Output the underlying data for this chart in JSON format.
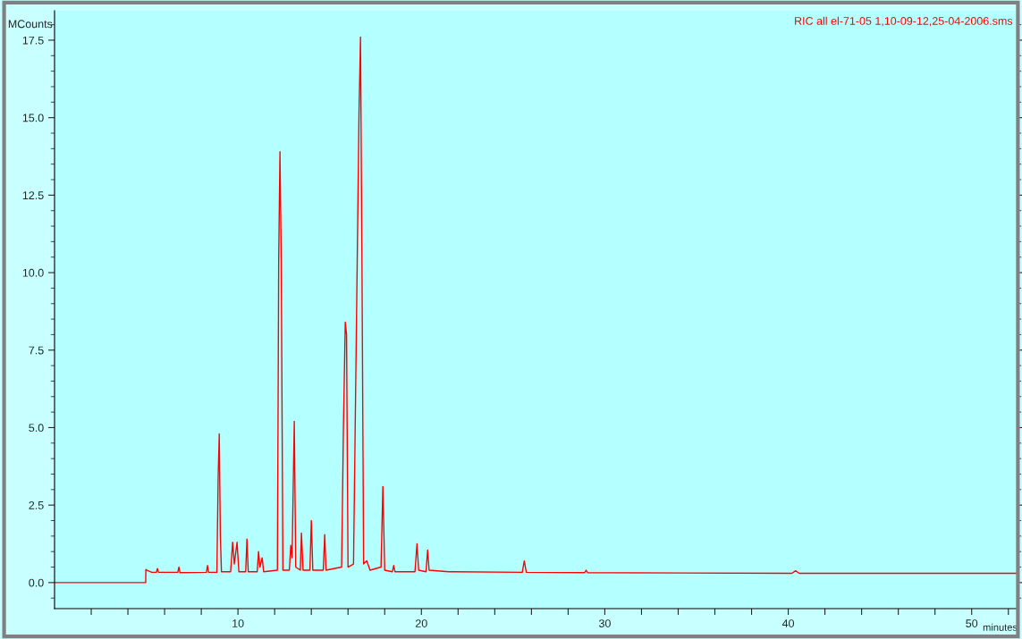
{
  "chart_data": {
    "type": "line",
    "title": "RIC all el-71-05 1,10-09-12,25-04-2006.sms",
    "xlabel": "minutes",
    "ylabel": "MCounts",
    "series": [
      {
        "color": "#ff0000",
        "x": [
          0,
          4.97,
          4.98,
          5.1,
          5.3,
          5.55,
          5.61,
          5.67,
          6.72,
          6.78,
          6.84,
          8.28,
          8.34,
          8.4,
          8.85,
          8.92,
          8.98,
          9.04,
          9.1,
          9.6,
          9.71,
          9.8,
          9.95,
          10.05,
          10.42,
          10.49,
          10.56,
          11.05,
          11.12,
          11.2,
          11.32,
          11.4,
          12.15,
          12.22,
          12.29,
          12.36,
          12.45,
          12.8,
          12.88,
          12.95,
          13.07,
          13.15,
          13.4,
          13.46,
          13.55,
          13.92,
          14.0,
          14.08,
          14.65,
          14.73,
          14.8,
          15.65,
          15.75,
          15.85,
          15.92,
          16.0,
          16.3,
          16.5,
          16.6,
          16.68,
          16.76,
          16.85,
          17.02,
          17.2,
          17.8,
          17.9,
          18.0,
          18.42,
          18.49,
          18.56,
          19.65,
          19.76,
          19.85,
          20.25,
          20.34,
          20.42,
          21.5,
          25.5,
          25.61,
          25.72,
          28.9,
          28.98,
          29.06,
          40.2,
          40.4,
          40.6,
          52.5
        ],
        "values": [
          0,
          0,
          0.42,
          0.38,
          0.33,
          0.33,
          0.45,
          0.33,
          0.33,
          0.5,
          0.32,
          0.33,
          0.55,
          0.33,
          0.33,
          3.4,
          4.8,
          1.5,
          0.35,
          0.35,
          1.3,
          0.6,
          1.3,
          0.35,
          0.35,
          1.4,
          0.35,
          0.35,
          1.0,
          0.5,
          0.8,
          0.35,
          0.4,
          10.4,
          13.9,
          10.3,
          0.4,
          0.4,
          1.2,
          0.8,
          5.2,
          0.5,
          0.4,
          1.6,
          0.4,
          0.4,
          2.0,
          0.4,
          0.4,
          1.55,
          0.4,
          0.5,
          5.0,
          8.4,
          8.0,
          0.5,
          0.6,
          10.3,
          15.2,
          17.6,
          10.3,
          0.6,
          0.7,
          0.4,
          0.5,
          3.1,
          0.4,
          0.35,
          0.55,
          0.35,
          0.35,
          1.25,
          0.4,
          0.35,
          1.05,
          0.4,
          0.35,
          0.33,
          0.7,
          0.33,
          0.32,
          0.4,
          0.32,
          0.3,
          0.38,
          0.3,
          0.3
        ]
      }
    ],
    "xlim": [
      0,
      52.5
    ],
    "ylim": [
      -0.84,
      18.45
    ],
    "xticks": [
      {
        "value": 2,
        "label": null
      },
      {
        "value": 4,
        "label": null
      },
      {
        "value": 6,
        "label": null
      },
      {
        "value": 8,
        "label": null
      },
      10,
      {
        "value": 12,
        "label": null
      },
      {
        "value": 14,
        "label": null
      },
      {
        "value": 16,
        "label": null
      },
      {
        "value": 18,
        "label": null
      },
      20,
      {
        "value": 22,
        "label": null
      },
      {
        "value": 24,
        "label": null
      },
      {
        "value": 26,
        "label": null
      },
      {
        "value": 28,
        "label": null
      },
      30,
      {
        "value": 32,
        "label": null
      },
      {
        "value": 34,
        "label": null
      },
      {
        "value": 36,
        "label": null
      },
      {
        "value": 38,
        "label": null
      },
      40,
      {
        "value": 42,
        "label": null
      },
      {
        "value": 44,
        "label": null
      },
      {
        "value": 46,
        "label": null
      },
      {
        "value": 48,
        "label": null
      },
      50,
      {
        "value": 52,
        "label": null
      }
    ],
    "yticks": [
      {
        "value": 0,
        "label": "0.0"
      },
      {
        "value": 2.5,
        "label": "2.5"
      },
      {
        "value": 5,
        "label": "5.0"
      },
      {
        "value": 7.5,
        "label": "7.5"
      },
      {
        "value": 10,
        "label": "10.0"
      },
      {
        "value": 12.5,
        "label": "12.5"
      },
      {
        "value": 15,
        "label": "15.0"
      },
      {
        "value": 17.5,
        "label": "17.5"
      }
    ],
    "grid": false,
    "legend": false,
    "marker": "none",
    "line_style": "solid"
  }
}
